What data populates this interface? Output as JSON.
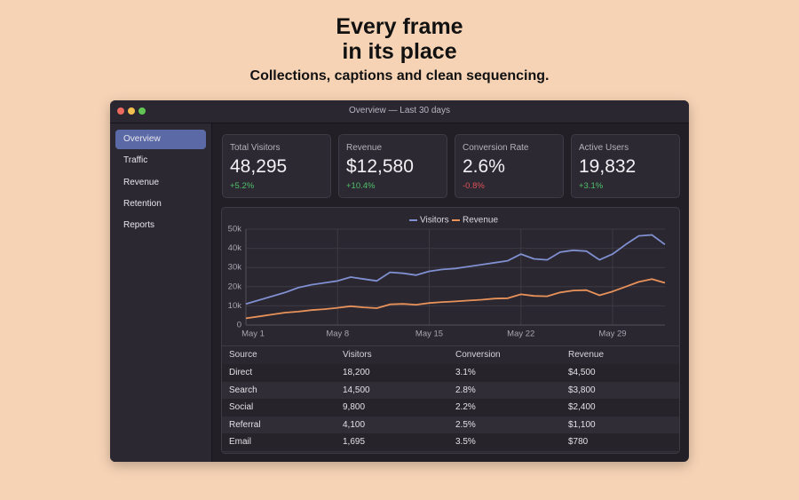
{
  "header": {
    "title_lines": [
      "Every frame",
      "in its place"
    ],
    "subtitle": "Collections, captions and clean sequencing."
  },
  "window": {
    "title": "Overview — Last 30 days"
  },
  "sidebar": {
    "items": [
      "Overview",
      "Traffic",
      "Revenue",
      "Retention",
      "Reports"
    ],
    "selected": 0
  },
  "kpis": [
    {
      "label": "Total Visitors",
      "value": "48,295",
      "delta": "+5.2%"
    },
    {
      "label": "Revenue",
      "value": "$12,580",
      "delta": "+10.4%"
    },
    {
      "label": "Conversion Rate",
      "value": "2.6%",
      "delta": "-0.8%"
    },
    {
      "label": "Active Users",
      "value": "19,832",
      "delta": "+3.1%"
    }
  ],
  "chart_data": {
    "type": "line",
    "categories": [
      "May 1",
      null,
      null,
      null,
      null,
      null,
      null,
      "May 8",
      null,
      null,
      null,
      null,
      null,
      null,
      "May 15",
      null,
      null,
      null,
      null,
      null,
      null,
      "May 22",
      null,
      null,
      null,
      null,
      null,
      null,
      "May 29",
      null,
      null,
      null,
      null
    ],
    "series": [
      {
        "name": "Visitors",
        "color": "#7f8fd0",
        "values": [
          11000,
          13000,
          15000,
          17000,
          19500,
          21000,
          22000,
          23000,
          25000,
          24000,
          23000,
          27500,
          27000,
          26000,
          28000,
          29000,
          29500,
          30500,
          31500,
          32500,
          33500,
          37000,
          34500,
          34000,
          38000,
          39000,
          38500,
          34000,
          37000,
          42000,
          46500,
          47000,
          42000
        ]
      },
      {
        "name": "Revenue",
        "color": "#e8925a",
        "values": [
          3500,
          4500,
          5500,
          6500,
          7000,
          7800,
          8300,
          9000,
          9800,
          9200,
          8800,
          10800,
          11000,
          10600,
          11500,
          12000,
          12300,
          12800,
          13200,
          13800,
          14000,
          16000,
          15200,
          15000,
          17000,
          18000,
          18200,
          15500,
          17500,
          20000,
          22500,
          24000,
          22000
        ]
      }
    ],
    "ylim": [
      0,
      50000
    ],
    "yticks": [
      0,
      {
        "value": 10000,
        "label": "10k"
      },
      {
        "value": 20000,
        "label": "20k"
      },
      {
        "value": 30000,
        "label": "30k"
      },
      {
        "value": 40000,
        "label": "40k"
      },
      {
        "value": 50000,
        "label": "50k"
      }
    ],
    "grid": true,
    "legend": "top"
  },
  "table": {
    "columns": [
      "Source",
      "Visitors",
      "Conversion",
      "Revenue"
    ],
    "rows": [
      [
        "Direct",
        "18,200",
        "3.1%",
        "$4,500"
      ],
      [
        "Search",
        "14,500",
        "2.8%",
        "$3,800"
      ],
      [
        "Social",
        "9,800",
        "2.2%",
        "$2,400"
      ],
      [
        "Referral",
        "4,100",
        "2.5%",
        "$1,100"
      ],
      [
        "Email",
        "1,695",
        "3.5%",
        "$780"
      ]
    ]
  }
}
